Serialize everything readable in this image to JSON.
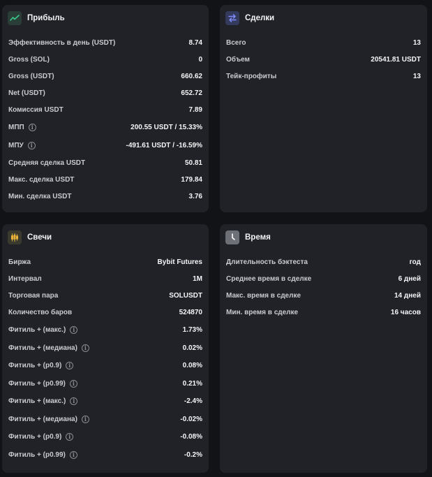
{
  "profit": {
    "title": "Прибыль",
    "icon": "trend-chart-icon",
    "rows": [
      {
        "label": "Эффективность в день (USDT)",
        "value": "8.74",
        "info": false
      },
      {
        "label": "Gross (SOL)",
        "value": "0",
        "info": false
      },
      {
        "label": "Gross (USDT)",
        "value": "660.62",
        "info": false
      },
      {
        "label": "Net (USDT)",
        "value": "652.72",
        "info": false
      },
      {
        "label": "Комиссия USDT",
        "value": "7.89",
        "info": false
      },
      {
        "label": "МПП",
        "value": "200.55 USDT / 15.33%",
        "info": true
      },
      {
        "label": "МПУ",
        "value": "-491.61 USDT / -16.59%",
        "info": true
      },
      {
        "label": "Средняя сделка USDT",
        "value": "50.81",
        "info": false
      },
      {
        "label": "Макс. сделка USDT",
        "value": "179.84",
        "info": false
      },
      {
        "label": "Мин. сделка USDT",
        "value": "3.76",
        "info": false
      }
    ]
  },
  "deals": {
    "title": "Сделки",
    "icon": "swap-arrows-icon",
    "rows": [
      {
        "label": "Всего",
        "value": "13"
      },
      {
        "label": "Объем",
        "value": "20541.81 USDT"
      },
      {
        "label": "Тейк-профиты",
        "value": "13"
      }
    ]
  },
  "candles": {
    "title": "Свечи",
    "icon": "candlestick-icon",
    "rows": [
      {
        "label": "Биржа",
        "value": "Bybit Futures",
        "info": false
      },
      {
        "label": "Интервал",
        "value": "1M",
        "info": false
      },
      {
        "label": "Торговая пара",
        "value": "SOLUSDT",
        "info": false
      },
      {
        "label": "Количество баров",
        "value": "524870",
        "info": false
      },
      {
        "label": "Фитиль + (макс.)",
        "value": "1.73%",
        "info": true
      },
      {
        "label": "Фитиль + (медиана)",
        "value": "0.02%",
        "info": true
      },
      {
        "label": "Фитиль + (p0.9)",
        "value": "0.08%",
        "info": true
      },
      {
        "label": "Фитиль + (p0.99)",
        "value": "0.21%",
        "info": true
      },
      {
        "label": "Фитиль + (макс.)",
        "value": "-2.4%",
        "info": true
      },
      {
        "label": "Фитиль + (медиана)",
        "value": "-0.02%",
        "info": true
      },
      {
        "label": "Фитиль + (p0.9)",
        "value": "-0.08%",
        "info": true
      },
      {
        "label": "Фитиль + (p0.99)",
        "value": "-0.2%",
        "info": true
      }
    ]
  },
  "time": {
    "title": "Время",
    "icon": "clock-icon",
    "rows": [
      {
        "label": "Длительность бэктеста",
        "value": "год"
      },
      {
        "label": "Среднее время в сделке",
        "value": "6 дней"
      },
      {
        "label": "Макс. время в сделке",
        "value": "14 дней"
      },
      {
        "label": "Мин. время в сделке",
        "value": "16 часов"
      }
    ]
  },
  "colors": {
    "background": "#121317",
    "card": "#202227",
    "profit_icon_bg": "#2b3d37",
    "deals_icon_bg": "#343a5c",
    "candles_icon_bg": "#3b3a2e",
    "time_icon_bg": "#6e7078"
  }
}
